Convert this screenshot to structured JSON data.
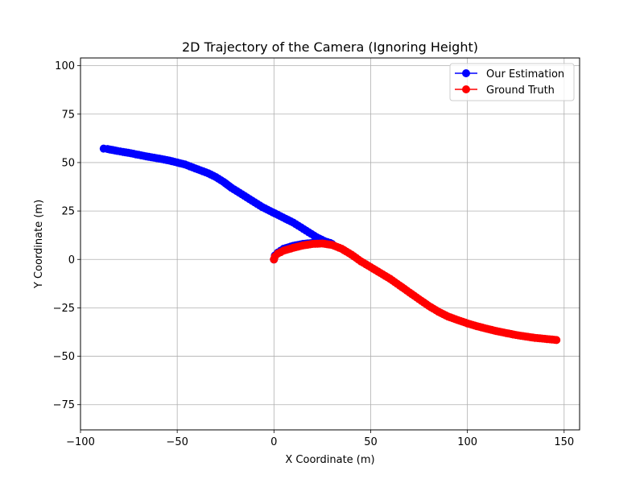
{
  "chart_data": {
    "type": "line",
    "title": "2D Trajectory of the Camera (Ignoring Height)",
    "xlabel": "X Coordinate (m)",
    "ylabel": "Y Coordinate (m)",
    "xlim": [
      -100,
      158
    ],
    "ylim": [
      -88,
      104
    ],
    "xticks": [
      -100,
      -50,
      0,
      50,
      100,
      150
    ],
    "yticks": [
      -75,
      -50,
      -25,
      0,
      25,
      50,
      75,
      100
    ],
    "xtick_labels": [
      "−100",
      "−50",
      "0",
      "50",
      "100",
      "150"
    ],
    "ytick_labels": [
      "−75",
      "−50",
      "−25",
      "0",
      "25",
      "50",
      "75",
      "100"
    ],
    "grid": true,
    "legend_position": "top-right",
    "series": [
      {
        "name": "Our Estimation",
        "color": "#0000ff",
        "marker": "circle",
        "points": [
          [
            0,
            0
          ],
          [
            0.5,
            2
          ],
          [
            2,
            3.5
          ],
          [
            5,
            5.5
          ],
          [
            10,
            7
          ],
          [
            15,
            8
          ],
          [
            20,
            8.5
          ],
          [
            25,
            8.7
          ],
          [
            28,
            8.5
          ],
          [
            30,
            8
          ],
          [
            29,
            8.5
          ],
          [
            26,
            9.5
          ],
          [
            22,
            11.5
          ],
          [
            18,
            14
          ],
          [
            14,
            16.5
          ],
          [
            10,
            19
          ],
          [
            6,
            21
          ],
          [
            2,
            23
          ],
          [
            -2,
            25
          ],
          [
            -6,
            27
          ],
          [
            -10,
            29.5
          ],
          [
            -14,
            32
          ],
          [
            -18,
            34.5
          ],
          [
            -22,
            37
          ],
          [
            -26,
            40
          ],
          [
            -30,
            42.5
          ],
          [
            -34,
            44.5
          ],
          [
            -38,
            46
          ],
          [
            -42,
            47.5
          ],
          [
            -46,
            49
          ],
          [
            -50,
            50
          ],
          [
            -54,
            51
          ],
          [
            -58,
            51.8
          ],
          [
            -62,
            52.5
          ],
          [
            -66,
            53.2
          ],
          [
            -70,
            54
          ],
          [
            -74,
            54.8
          ],
          [
            -78,
            55.5
          ],
          [
            -81,
            56
          ],
          [
            -86,
            57
          ],
          [
            -88,
            57.2
          ]
        ]
      },
      {
        "name": "Ground Truth",
        "color": "#ff0000",
        "marker": "circle",
        "points": [
          [
            0,
            0
          ],
          [
            0.5,
            1.5
          ],
          [
            2,
            3
          ],
          [
            5,
            4.5
          ],
          [
            10,
            6
          ],
          [
            15,
            7.2
          ],
          [
            20,
            8
          ],
          [
            25,
            8.2
          ],
          [
            30,
            7.5
          ],
          [
            35,
            5.5
          ],
          [
            40,
            2.5
          ],
          [
            45,
            -1
          ],
          [
            50,
            -4
          ],
          [
            55,
            -7
          ],
          [
            60,
            -10
          ],
          [
            65,
            -13.5
          ],
          [
            70,
            -17
          ],
          [
            75,
            -20.5
          ],
          [
            80,
            -24
          ],
          [
            85,
            -27
          ],
          [
            90,
            -29.5
          ],
          [
            95,
            -31.3
          ],
          [
            100,
            -33
          ],
          [
            105,
            -34.5
          ],
          [
            110,
            -35.8
          ],
          [
            115,
            -37
          ],
          [
            120,
            -38
          ],
          [
            125,
            -39
          ],
          [
            130,
            -39.8
          ],
          [
            135,
            -40.5
          ],
          [
            140,
            -41
          ],
          [
            145,
            -41.5
          ],
          [
            146,
            -41.6
          ]
        ]
      }
    ]
  }
}
